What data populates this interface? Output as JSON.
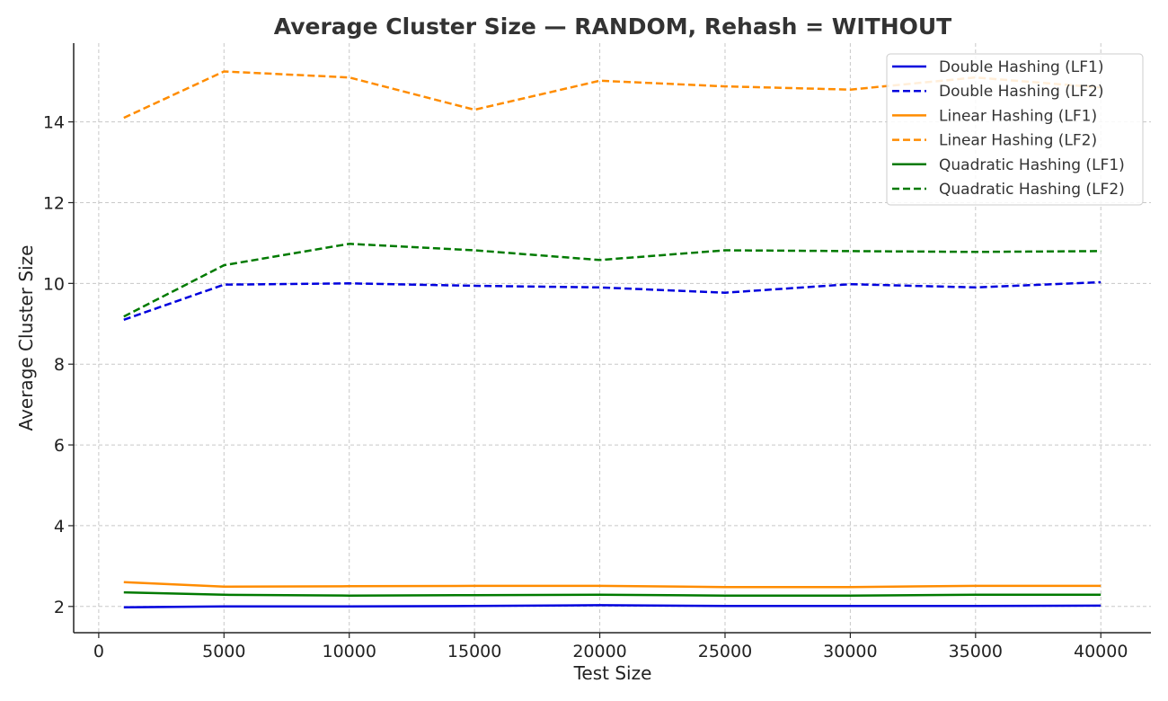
{
  "chart_data": {
    "type": "line",
    "title": "Average Cluster Size — RANDOM, Rehash = WITHOUT",
    "xlabel": "Test Size",
    "ylabel": "Average Cluster Size",
    "xlim": [
      -1000,
      42000
    ],
    "ylim": [
      1.35,
      15.95
    ],
    "xticks": [
      0,
      5000,
      10000,
      15000,
      20000,
      25000,
      30000,
      35000,
      40000
    ],
    "yticks": [
      2,
      4,
      6,
      8,
      10,
      12,
      14
    ],
    "grid": true,
    "legend_position": "top-right",
    "x": [
      1000,
      5000,
      10000,
      15000,
      20000,
      25000,
      30000,
      35000,
      40000
    ],
    "series": [
      {
        "name": "Double Hashing (LF1)",
        "color": "#0000dd",
        "style": "solid",
        "values": [
          1.98,
          2.0,
          2.0,
          2.01,
          2.03,
          2.01,
          2.01,
          2.01,
          2.02
        ]
      },
      {
        "name": "Double Hashing (LF2)",
        "color": "#0000dd",
        "style": "dashed",
        "values": [
          9.1,
          9.97,
          10.0,
          9.94,
          9.9,
          9.77,
          9.98,
          9.9,
          10.03
        ]
      },
      {
        "name": "Linear Hashing (LF1)",
        "color": "#ff8c00",
        "style": "solid",
        "values": [
          2.6,
          2.49,
          2.5,
          2.51,
          2.51,
          2.48,
          2.48,
          2.51,
          2.51
        ]
      },
      {
        "name": "Linear Hashing (LF2)",
        "color": "#ff8c00",
        "style": "dashed",
        "values": [
          14.1,
          15.25,
          15.1,
          14.3,
          15.02,
          14.88,
          14.8,
          15.1,
          14.85
        ]
      },
      {
        "name": "Quadratic Hashing (LF1)",
        "color": "#007a00",
        "style": "solid",
        "values": [
          2.35,
          2.29,
          2.27,
          2.28,
          2.29,
          2.27,
          2.27,
          2.29,
          2.29
        ]
      },
      {
        "name": "Quadratic Hashing (LF2)",
        "color": "#007a00",
        "style": "dashed",
        "values": [
          9.18,
          10.45,
          10.98,
          10.82,
          10.58,
          10.82,
          10.8,
          10.78,
          10.8
        ]
      }
    ]
  }
}
